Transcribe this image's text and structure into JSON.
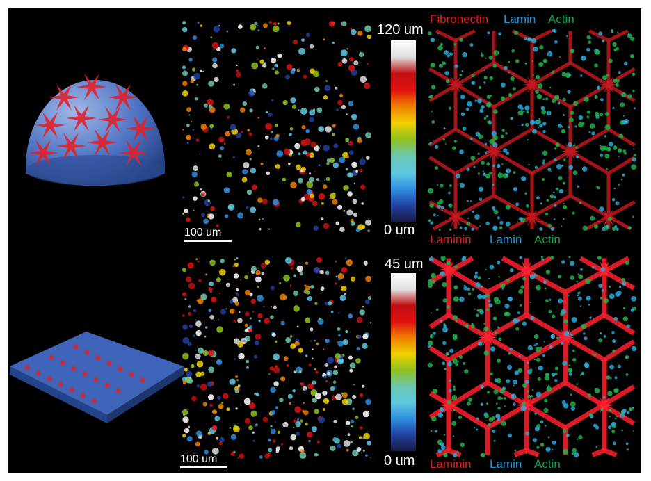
{
  "top_row": {
    "colorbar": {
      "max_label": "120 um",
      "min_label": "0 um"
    },
    "scale_bar": "100 um",
    "legend": [
      {
        "text": "Fibronectin",
        "color": "#e0201e"
      },
      {
        "text": "Lamin",
        "color": "#1e9ad6"
      },
      {
        "text": "Actin",
        "color": "#16a34a"
      }
    ],
    "substrate": "dome"
  },
  "bottom_row": {
    "colorbar": {
      "max_label": "45 um",
      "min_label": "0 um"
    },
    "scale_bar": "100 um",
    "legend": [
      {
        "text": "Laminin",
        "color": "#e0201e"
      },
      {
        "text": "Lamin",
        "color": "#1e9ad6"
      },
      {
        "text": "Actin",
        "color": "#16a34a"
      }
    ],
    "substrate": "ridged-slab"
  },
  "colormap": [
    "#1a1a40",
    "#2040a0",
    "#2f8fe0",
    "#5fc8e0",
    "#6cc8b0",
    "#90c020",
    "#f0d000",
    "#f08000",
    "#e01010",
    "#c01010",
    "#e0e0e0",
    "#ffffff"
  ]
}
